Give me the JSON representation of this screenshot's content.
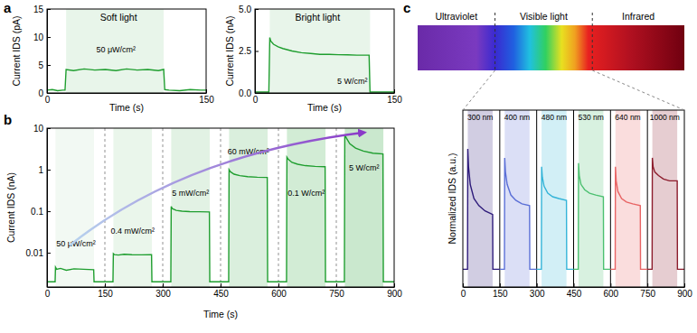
{
  "chart_data": [
    {
      "panel_label": "a",
      "type": "line",
      "title": "Soft light",
      "xlabel": "Time (s)",
      "ylabel": "Current IDS (pA)",
      "xlim": [
        0,
        150
      ],
      "xticks": [
        0,
        150
      ],
      "ylim": [
        0,
        15
      ],
      "yticks": [
        0,
        5,
        10,
        15
      ],
      "color": "#1f9e2f",
      "light_on": [
        [
          18,
          110
        ]
      ],
      "x": [
        0,
        5,
        10,
        15,
        17,
        18,
        25,
        35,
        45,
        55,
        65,
        75,
        85,
        95,
        105,
        110,
        111,
        115,
        125,
        135,
        145,
        150
      ],
      "values": [
        0.5,
        0.6,
        0.4,
        0.5,
        0.5,
        4.2,
        4.0,
        4.3,
        4.1,
        4.2,
        4.0,
        4.3,
        4.1,
        4.2,
        4.0,
        4.2,
        0.6,
        0.5,
        0.4,
        0.6,
        0.5,
        0.5
      ],
      "annotations": [
        {
          "text": "50 μW/cm²",
          "x": 65,
          "y": 7.7
        }
      ]
    },
    {
      "type": "line",
      "title": "Bright light",
      "xlabel": "Time (s)",
      "ylabel": "Current IDS (nA)",
      "xlim": [
        0,
        150
      ],
      "xticks": [
        0,
        150
      ],
      "ylim": [
        0,
        5
      ],
      "yticks": [
        {
          "value": 0,
          "label": "0.0"
        },
        2.5,
        {
          "value": 5,
          "label": "5.0"
        }
      ],
      "color": "#1f9e2f",
      "light_on": [
        [
          16,
          124
        ]
      ],
      "x": [
        0,
        15,
        16,
        17,
        20,
        25,
        30,
        40,
        50,
        60,
        70,
        80,
        90,
        100,
        110,
        120,
        123,
        124,
        130,
        140,
        150
      ],
      "values": [
        0.05,
        0.05,
        3.3,
        3.1,
        2.9,
        2.75,
        2.65,
        2.5,
        2.4,
        2.35,
        2.3,
        2.3,
        2.28,
        2.27,
        2.25,
        2.25,
        2.25,
        0.05,
        0.05,
        0.05,
        0.05
      ],
      "annotations": [
        {
          "text": "5 W/cm²",
          "x": 105,
          "y": 0.7
        }
      ]
    },
    {
      "panel_label": "b",
      "type": "line",
      "log": "y",
      "xlabel": "Time (s)",
      "ylabel": "Current IDS (nA)",
      "xlim": [
        0,
        900
      ],
      "xticks": [
        0,
        150,
        300,
        450,
        600,
        750,
        900
      ],
      "ylim": [
        0.0015,
        10
      ],
      "yticks": [
        0.01,
        0.1,
        1,
        10
      ],
      "color": "#1f9e2f",
      "light_on": [
        [
          22,
          122
        ],
        [
          172,
          272
        ],
        [
          322,
          422
        ],
        [
          472,
          572
        ],
        [
          622,
          722
        ],
        [
          772,
          872
        ]
      ],
      "x": [
        0,
        21,
        22,
        25,
        35,
        50,
        70,
        95,
        121,
        122,
        150,
        171,
        172,
        175,
        185,
        200,
        220,
        245,
        271,
        272,
        300,
        321,
        322,
        325,
        335,
        350,
        370,
        395,
        421,
        422,
        450,
        471,
        472,
        475,
        485,
        500,
        520,
        545,
        571,
        572,
        600,
        621,
        622,
        625,
        635,
        650,
        670,
        695,
        721,
        722,
        750,
        771,
        772,
        775,
        785,
        800,
        820,
        845,
        871,
        872,
        900
      ],
      "values": [
        0.002,
        0.002,
        0.0045,
        0.004,
        0.0042,
        0.0038,
        0.0041,
        0.004,
        0.0039,
        0.002,
        0.002,
        0.002,
        0.0095,
        0.009,
        0.0088,
        0.0092,
        0.009,
        0.0089,
        0.009,
        0.002,
        0.002,
        0.002,
        0.13,
        0.115,
        0.105,
        0.1,
        0.098,
        0.097,
        0.096,
        0.002,
        0.002,
        0.002,
        1.0,
        0.9,
        0.78,
        0.72,
        0.68,
        0.66,
        0.65,
        0.002,
        0.002,
        0.002,
        2.0,
        1.8,
        1.5,
        1.35,
        1.25,
        1.2,
        1.18,
        0.002,
        0.002,
        0.002,
        7.0,
        6.0,
        4.2,
        3.3,
        2.8,
        2.5,
        2.4,
        0.002,
        0.002
      ],
      "annotations": [
        {
          "text": "50 μW/cm²",
          "x": 75,
          "y": 0.017
        },
        {
          "text": "0.4 mW/cm²",
          "x": 222,
          "y": 0.034
        },
        {
          "text": "5 mW/cm²",
          "x": 372,
          "y": 0.28
        },
        {
          "text": "60 mW/cm²",
          "x": 522,
          "y": 2.8
        },
        {
          "text": "0.1 W/cm²",
          "x": 672,
          "y": 0.28
        },
        {
          "text": "5 W/cm²",
          "x": 822,
          "y": 1.1
        }
      ]
    },
    {
      "panel_label": "c",
      "type": "line",
      "ylabel": "Normalized IDS (a.u.)",
      "tick_labels": "x",
      "bands": [
        "Ultraviolet",
        "Visible light",
        "Infrared"
      ],
      "xlim": [
        0,
        900
      ],
      "xticks": [
        0,
        150,
        300,
        450,
        600,
        750,
        900
      ],
      "ylim": [
        0,
        1
      ],
      "light_on": [
        [
          20,
          121
        ],
        [
          170,
          271
        ],
        [
          320,
          421
        ],
        [
          470,
          571
        ],
        [
          620,
          721
        ],
        [
          770,
          871
        ]
      ],
      "series": [
        {
          "name": "300 nm",
          "color": "#2d1a7a",
          "x": [
            0,
            19,
            20,
            23,
            30,
            45,
            65,
            90,
            121,
            122,
            150
          ],
          "values": [
            0.1,
            0.1,
            0.78,
            0.68,
            0.58,
            0.5,
            0.46,
            0.43,
            0.41,
            0.1,
            0.1
          ]
        },
        {
          "name": "400 nm",
          "color": "#5a6fd6",
          "x": [
            150,
            169,
            170,
            173,
            180,
            195,
            215,
            240,
            271,
            272,
            300
          ],
          "values": [
            0.1,
            0.1,
            0.73,
            0.65,
            0.58,
            0.52,
            0.49,
            0.47,
            0.46,
            0.1,
            0.1
          ]
        },
        {
          "name": "480 nm",
          "color": "#34b4d8",
          "x": [
            300,
            319,
            320,
            323,
            330,
            345,
            365,
            390,
            421,
            422,
            450
          ],
          "values": [
            0.1,
            0.1,
            0.68,
            0.62,
            0.57,
            0.53,
            0.51,
            0.5,
            0.49,
            0.1,
            0.1
          ]
        },
        {
          "name": "530 nm",
          "color": "#4cc070",
          "x": [
            450,
            469,
            470,
            473,
            480,
            495,
            515,
            540,
            571,
            572,
            600
          ],
          "values": [
            0.1,
            0.1,
            0.7,
            0.63,
            0.58,
            0.55,
            0.53,
            0.52,
            0.51,
            0.1,
            0.1
          ]
        },
        {
          "name": "640 nm",
          "color": "#e86464",
          "x": [
            600,
            619,
            620,
            623,
            630,
            645,
            665,
            690,
            721,
            722,
            750
          ],
          "values": [
            0.1,
            0.1,
            0.68,
            0.6,
            0.54,
            0.5,
            0.48,
            0.47,
            0.46,
            0.1,
            0.1
          ]
        },
        {
          "name": "1000 nm",
          "color": "#8c1c2c",
          "x": [
            750,
            769,
            770,
            773,
            780,
            795,
            815,
            840,
            871,
            872,
            900
          ],
          "values": [
            0.1,
            0.1,
            0.73,
            0.68,
            0.65,
            0.63,
            0.61,
            0.6,
            0.6,
            0.1,
            0.1
          ]
        }
      ]
    }
  ]
}
